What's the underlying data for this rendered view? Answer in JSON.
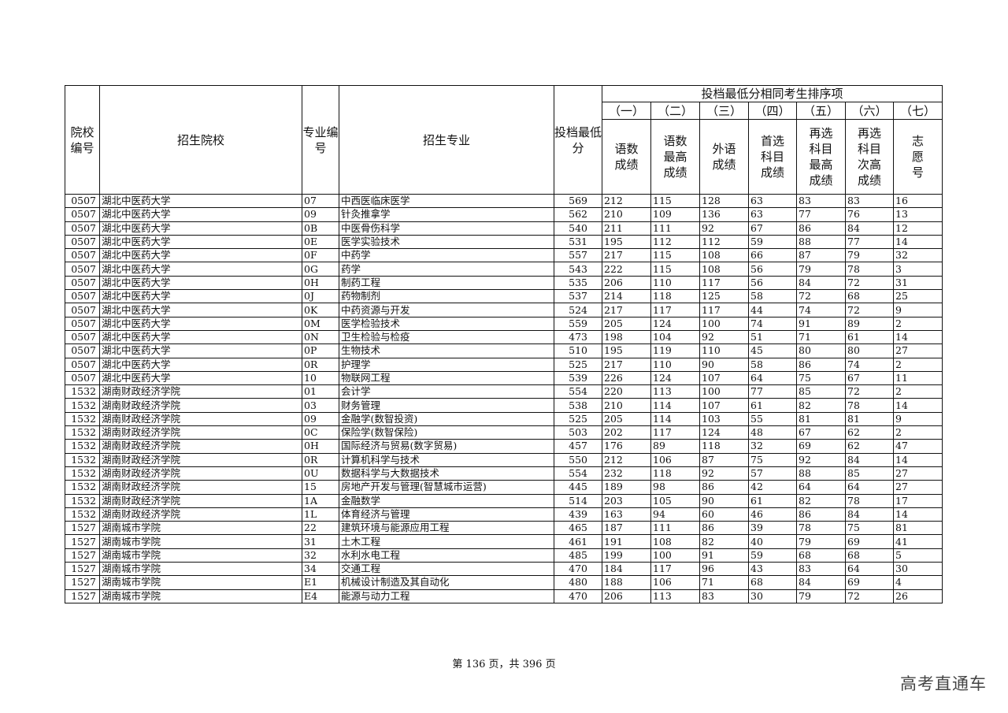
{
  "table": {
    "headers": {
      "school_code": "院校编号",
      "school": "招生院校",
      "major_code": "专业编号",
      "major": "招生专业",
      "min_score": "投档最低分",
      "group_title": "投档最低分相同考生排序项",
      "sub": [
        {
          "num": "（一）",
          "label": "语数成绩"
        },
        {
          "num": "（二）",
          "label": "语数最高成绩"
        },
        {
          "num": "（三）",
          "label": "外语成绩"
        },
        {
          "num": "（四）",
          "label": "首选科目成绩"
        },
        {
          "num": "（五）",
          "label": "再选科目最高成绩"
        },
        {
          "num": "（六）",
          "label": "再选科目次高成绩"
        },
        {
          "num": "（七）",
          "label": "志愿号"
        }
      ]
    },
    "rows": [
      [
        "0507",
        "湖北中医药大学",
        "07",
        "中西医临床医学",
        "569",
        "212",
        "115",
        "128",
        "63",
        "83",
        "83",
        "16"
      ],
      [
        "0507",
        "湖北中医药大学",
        "09",
        "针灸推拿学",
        "562",
        "210",
        "109",
        "136",
        "63",
        "77",
        "76",
        "13"
      ],
      [
        "0507",
        "湖北中医药大学",
        "0B",
        "中医骨伤科学",
        "540",
        "211",
        "111",
        "92",
        "67",
        "86",
        "84",
        "12"
      ],
      [
        "0507",
        "湖北中医药大学",
        "0E",
        "医学实验技术",
        "531",
        "195",
        "112",
        "112",
        "59",
        "88",
        "77",
        "14"
      ],
      [
        "0507",
        "湖北中医药大学",
        "0F",
        "中药学",
        "557",
        "217",
        "115",
        "108",
        "66",
        "87",
        "79",
        "32"
      ],
      [
        "0507",
        "湖北中医药大学",
        "0G",
        "药学",
        "543",
        "222",
        "115",
        "108",
        "56",
        "79",
        "78",
        "3"
      ],
      [
        "0507",
        "湖北中医药大学",
        "0H",
        "制药工程",
        "535",
        "206",
        "110",
        "117",
        "56",
        "84",
        "72",
        "31"
      ],
      [
        "0507",
        "湖北中医药大学",
        "0J",
        "药物制剂",
        "537",
        "214",
        "118",
        "125",
        "58",
        "72",
        "68",
        "25"
      ],
      [
        "0507",
        "湖北中医药大学",
        "0K",
        "中药资源与开发",
        "524",
        "217",
        "117",
        "117",
        "44",
        "74",
        "72",
        "9"
      ],
      [
        "0507",
        "湖北中医药大学",
        "0M",
        "医学检验技术",
        "559",
        "205",
        "124",
        "100",
        "74",
        "91",
        "89",
        "2"
      ],
      [
        "0507",
        "湖北中医药大学",
        "0N",
        "卫生检验与检疫",
        "473",
        "198",
        "104",
        "92",
        "51",
        "71",
        "61",
        "14"
      ],
      [
        "0507",
        "湖北中医药大学",
        "0P",
        "生物技术",
        "510",
        "195",
        "119",
        "110",
        "45",
        "80",
        "80",
        "27"
      ],
      [
        "0507",
        "湖北中医药大学",
        "0R",
        "护理学",
        "525",
        "217",
        "110",
        "90",
        "58",
        "86",
        "74",
        "2"
      ],
      [
        "0507",
        "湖北中医药大学",
        "10",
        "物联网工程",
        "539",
        "226",
        "124",
        "107",
        "64",
        "75",
        "67",
        "11"
      ],
      [
        "1532",
        "湖南财政经济学院",
        "01",
        "会计学",
        "554",
        "220",
        "113",
        "100",
        "77",
        "85",
        "72",
        "2"
      ],
      [
        "1532",
        "湖南财政经济学院",
        "03",
        "财务管理",
        "538",
        "210",
        "114",
        "107",
        "61",
        "82",
        "78",
        "14"
      ],
      [
        "1532",
        "湖南财政经济学院",
        "09",
        "金融学(数智投资)",
        "525",
        "205",
        "114",
        "103",
        "55",
        "81",
        "81",
        "9"
      ],
      [
        "1532",
        "湖南财政经济学院",
        "0C",
        "保险学(数智保险)",
        "503",
        "202",
        "117",
        "124",
        "48",
        "67",
        "62",
        "2"
      ],
      [
        "1532",
        "湖南财政经济学院",
        "0H",
        "国际经济与贸易(数字贸易)",
        "457",
        "176",
        "89",
        "118",
        "32",
        "69",
        "62",
        "47"
      ],
      [
        "1532",
        "湖南财政经济学院",
        "0R",
        "计算机科学与技术",
        "550",
        "212",
        "106",
        "87",
        "75",
        "92",
        "84",
        "14"
      ],
      [
        "1532",
        "湖南财政经济学院",
        "0U",
        "数据科学与大数据技术",
        "554",
        "232",
        "118",
        "92",
        "57",
        "88",
        "85",
        "27"
      ],
      [
        "1532",
        "湖南财政经济学院",
        "15",
        "房地产开发与管理(智慧城市运营)",
        "445",
        "189",
        "98",
        "86",
        "42",
        "64",
        "64",
        "27"
      ],
      [
        "1532",
        "湖南财政经济学院",
        "1A",
        "金融数学",
        "514",
        "203",
        "105",
        "90",
        "61",
        "82",
        "78",
        "17"
      ],
      [
        "1532",
        "湖南财政经济学院",
        "1L",
        "体育经济与管理",
        "439",
        "163",
        "94",
        "60",
        "46",
        "86",
        "84",
        "14"
      ],
      [
        "1527",
        "湖南城市学院",
        "22",
        "建筑环境与能源应用工程",
        "465",
        "187",
        "111",
        "86",
        "39",
        "78",
        "75",
        "81"
      ],
      [
        "1527",
        "湖南城市学院",
        "31",
        "土木工程",
        "461",
        "191",
        "108",
        "82",
        "40",
        "79",
        "69",
        "41"
      ],
      [
        "1527",
        "湖南城市学院",
        "32",
        "水利水电工程",
        "485",
        "199",
        "100",
        "91",
        "59",
        "68",
        "68",
        "5"
      ],
      [
        "1527",
        "湖南城市学院",
        "34",
        "交通工程",
        "470",
        "184",
        "117",
        "96",
        "43",
        "83",
        "64",
        "30"
      ],
      [
        "1527",
        "湖南城市学院",
        "E1",
        "机械设计制造及其自动化",
        "480",
        "188",
        "106",
        "71",
        "68",
        "84",
        "69",
        "4"
      ],
      [
        "1527",
        "湖南城市学院",
        "E4",
        "能源与动力工程",
        "470",
        "206",
        "113",
        "83",
        "30",
        "79",
        "72",
        "26"
      ]
    ]
  },
  "footer": {
    "page_text": "第 136 页，共 396 页"
  },
  "watermark": "高考直通车"
}
